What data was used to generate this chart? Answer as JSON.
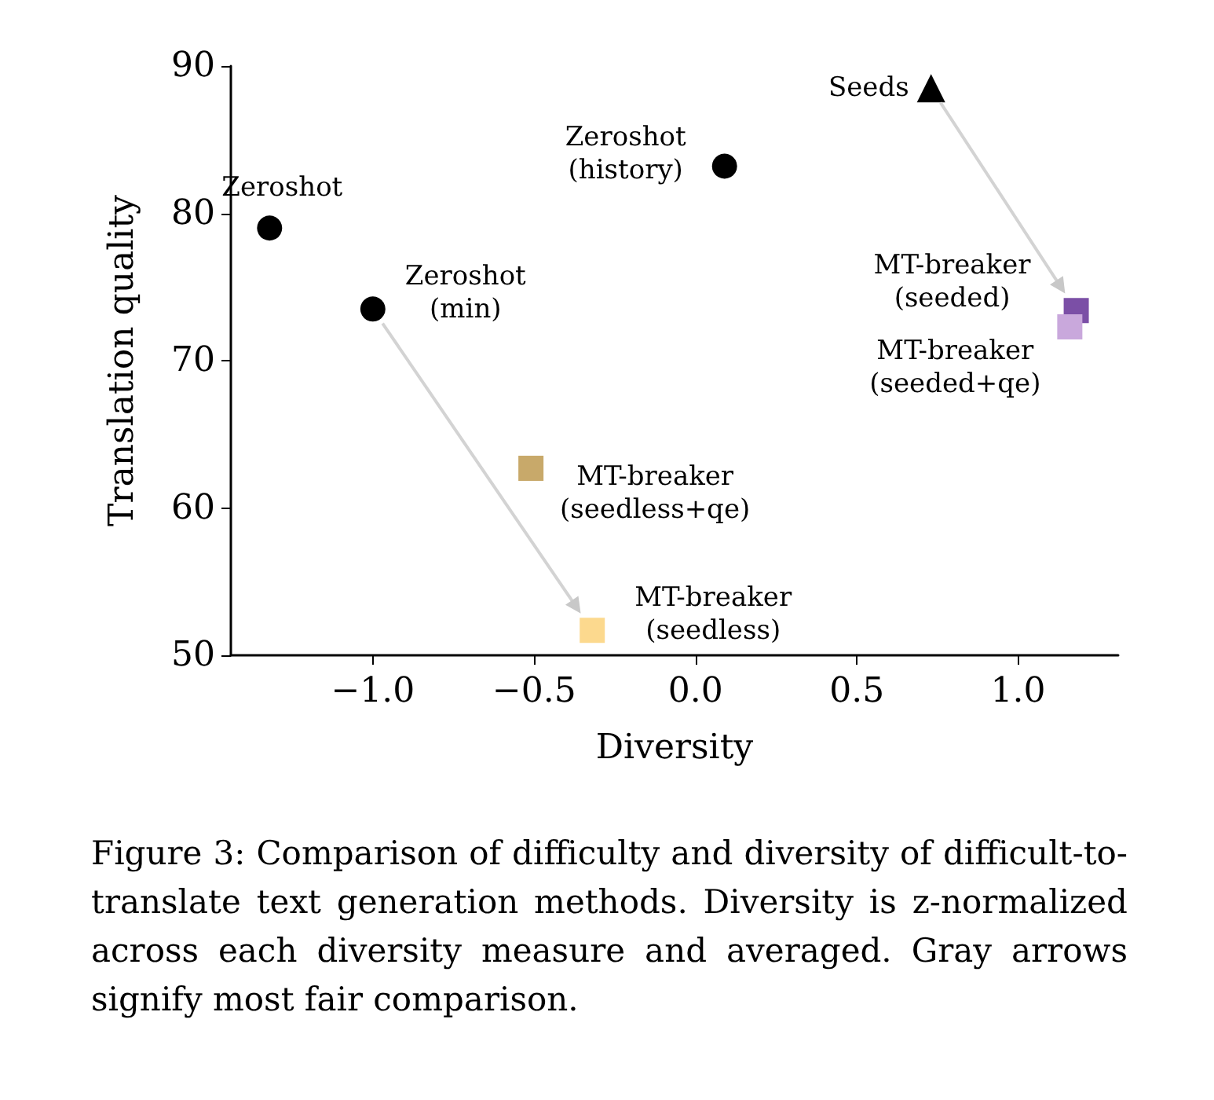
{
  "chart_data": {
    "type": "scatter",
    "xlabel": "Diversity",
    "ylabel": "Translation quality",
    "xlim": [
      -1.44,
      1.31
    ],
    "ylim": [
      50,
      90
    ],
    "xticks": [
      {
        "value": -1,
        "label": "−1.0"
      },
      {
        "value": -0.5,
        "label": "−0.5"
      },
      {
        "value": 0,
        "label": "0.0"
      },
      {
        "value": 0.5,
        "label": "0.5"
      },
      {
        "value": 1,
        "label": "1.0"
      }
    ],
    "yticks": [
      50,
      60,
      70,
      80,
      90
    ],
    "grid": false,
    "legend": false,
    "series": [
      {
        "name": "Zeroshot",
        "color": "#000000",
        "marker": "circle",
        "x": [
          -1.32
        ],
        "values": [
          79.0
        ]
      },
      {
        "name": "Zeroshot\n(min)",
        "color": "#000000",
        "marker": "circle",
        "x": [
          -1.0
        ],
        "values": [
          73.5
        ]
      },
      {
        "name": "Zeroshot\n(history)",
        "color": "#000000",
        "marker": "circle",
        "x": [
          0.09
        ],
        "values": [
          83.2
        ]
      },
      {
        "name": "Seeds",
        "color": "#000000",
        "marker": "triangle",
        "x": [
          0.73
        ],
        "values": [
          88.5
        ]
      },
      {
        "name": "MT-breaker\n(seeded)",
        "color": "#7b4fa6",
        "marker": "square",
        "x": [
          1.18
        ],
        "values": [
          73.4
        ]
      },
      {
        "name": "MT-breaker\n(seeded+qe)",
        "color": "#c9a8dc",
        "marker": "square",
        "x": [
          1.16
        ],
        "values": [
          72.3
        ]
      },
      {
        "name": "MT-breaker\n(seedless+qe)",
        "color": "#c8a96a",
        "marker": "square",
        "x": [
          -0.51
        ],
        "values": [
          62.7
        ]
      },
      {
        "name": "MT-breaker\n(seedless)",
        "color": "#fcd98e",
        "marker": "square",
        "x": [
          -0.32
        ],
        "values": [
          51.7
        ]
      }
    ],
    "annotations": [
      "Figure 3: Comparison of difficulty and diversity of difficult-to-translate text generation methods. Diversity is z-normalized across each diversity measure and averaged. Gray arrows signify most fair comparison."
    ]
  }
}
